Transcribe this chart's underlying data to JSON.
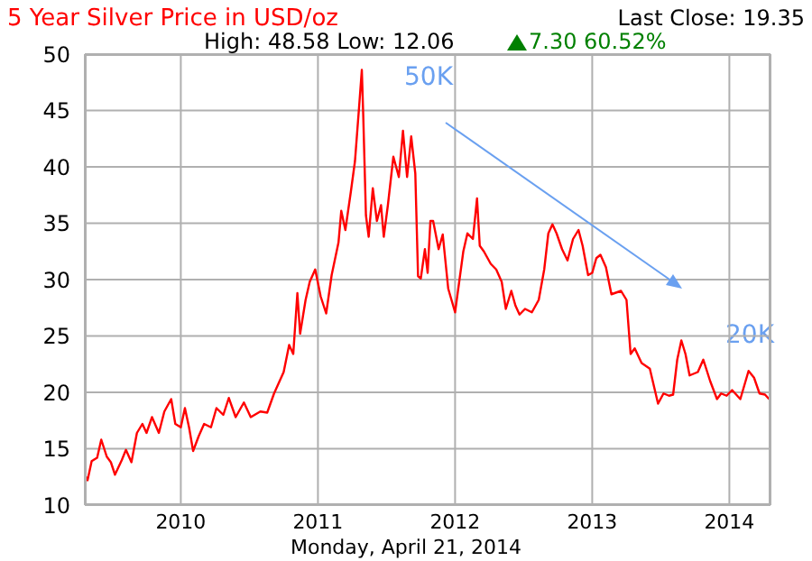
{
  "chart_data": {
    "type": "line",
    "title": "5 Year Silver Price in USD/oz",
    "subtitle": "High: 48.58 Low: 12.06",
    "xlabel": "Monday, April 21, 2014",
    "annotations": [
      "Last Close: 19.35",
      "7.30 60.52%",
      "50K",
      "20K"
    ],
    "x": [
      2009.3,
      2009.32,
      2009.35,
      2009.39,
      2009.42,
      2009.46,
      2009.49,
      2009.52,
      2009.57,
      2009.6,
      2009.64,
      2009.68,
      2009.72,
      2009.75,
      2009.79,
      2009.84,
      2009.88,
      2009.93,
      2009.96,
      2010.0,
      2010.03,
      2010.06,
      2010.09,
      2010.13,
      2010.17,
      2010.22,
      2010.26,
      2010.31,
      2010.35,
      2010.4,
      2010.46,
      2010.51,
      2010.58,
      2010.63,
      2010.68,
      2010.75,
      2010.79,
      2010.82,
      2010.85,
      2010.87,
      2010.91,
      2010.94,
      2010.98,
      2011.02,
      2011.06,
      2011.1,
      2011.15,
      2011.17,
      2011.2,
      2011.24,
      2011.27,
      2011.3,
      2011.32,
      2011.33,
      2011.35,
      2011.37,
      2011.4,
      2011.43,
      2011.46,
      2011.48,
      2011.51,
      2011.55,
      2011.59,
      2011.62,
      2011.65,
      2011.68,
      2011.71,
      2011.73,
      2011.75,
      2011.78,
      2011.8,
      2011.82,
      2011.84,
      2011.88,
      2011.91,
      2011.95,
      2012.0,
      2012.03,
      2012.06,
      2012.09,
      2012.13,
      2012.16,
      2012.18,
      2012.21,
      2012.26,
      2012.3,
      2012.34,
      2012.37,
      2012.41,
      2012.44,
      2012.47,
      2012.51,
      2012.56,
      2012.61,
      2012.65,
      2012.68,
      2012.71,
      2012.74,
      2012.78,
      2012.82,
      2012.86,
      2012.9,
      2012.93,
      2012.97,
      2013.0,
      2013.03,
      2013.06,
      2013.1,
      2013.14,
      2013.21,
      2013.25,
      2013.28,
      2013.31,
      2013.36,
      2013.42,
      2013.48,
      2013.52,
      2013.56,
      2013.59,
      2013.62,
      2013.65,
      2013.68,
      2013.71,
      2013.77,
      2013.81,
      2013.86,
      2013.91,
      2013.94,
      2013.98,
      2014.02,
      2014.08,
      2014.14,
      2014.18,
      2014.22,
      2014.26,
      2014.29
    ],
    "values": [
      12.7,
      12.2,
      13.9,
      14.2,
      15.8,
      14.3,
      13.8,
      12.7,
      14.0,
      14.9,
      13.8,
      16.4,
      17.2,
      16.4,
      17.8,
      16.4,
      18.3,
      19.4,
      17.2,
      16.9,
      18.6,
      16.9,
      14.8,
      16.1,
      17.2,
      16.9,
      18.6,
      18.0,
      19.5,
      17.8,
      19.1,
      17.8,
      18.3,
      18.2,
      19.9,
      21.8,
      24.2,
      23.4,
      28.8,
      25.2,
      28.2,
      29.8,
      30.9,
      28.5,
      27.0,
      30.4,
      33.3,
      36.1,
      34.4,
      37.8,
      40.5,
      45.3,
      48.6,
      44.7,
      35.7,
      33.8,
      38.1,
      35.2,
      36.6,
      33.8,
      36.6,
      40.9,
      39.1,
      43.2,
      39.1,
      42.7,
      39.4,
      30.3,
      30.1,
      32.7,
      30.6,
      35.2,
      35.2,
      32.7,
      34.0,
      29.2,
      27.1,
      29.8,
      32.5,
      34.1,
      33.6,
      37.2,
      33.0,
      32.5,
      31.4,
      30.9,
      29.8,
      27.4,
      29.0,
      27.7,
      26.9,
      27.4,
      27.1,
      28.2,
      30.9,
      34.1,
      34.9,
      34.1,
      32.7,
      31.7,
      33.6,
      34.4,
      33.0,
      30.4,
      30.6,
      31.9,
      32.2,
      31.1,
      28.7,
      29.0,
      28.2,
      23.4,
      23.9,
      22.6,
      22.1,
      19.0,
      19.9,
      19.7,
      19.8,
      22.9,
      24.6,
      23.4,
      21.5,
      21.8,
      22.9,
      21.0,
      19.4,
      19.9,
      19.7,
      20.2,
      19.4,
      21.9,
      21.3,
      19.9,
      19.8,
      19.4
    ],
    "color": "#ff0000",
    "xlim": [
      2009.3,
      2014.3
    ],
    "xticks": [
      2010,
      2011,
      2012,
      2013,
      2014
    ],
    "ylim": [
      10,
      50
    ],
    "yticks": [
      10,
      15,
      20,
      25,
      30,
      35,
      40,
      45,
      50
    ],
    "grid": true
  }
}
